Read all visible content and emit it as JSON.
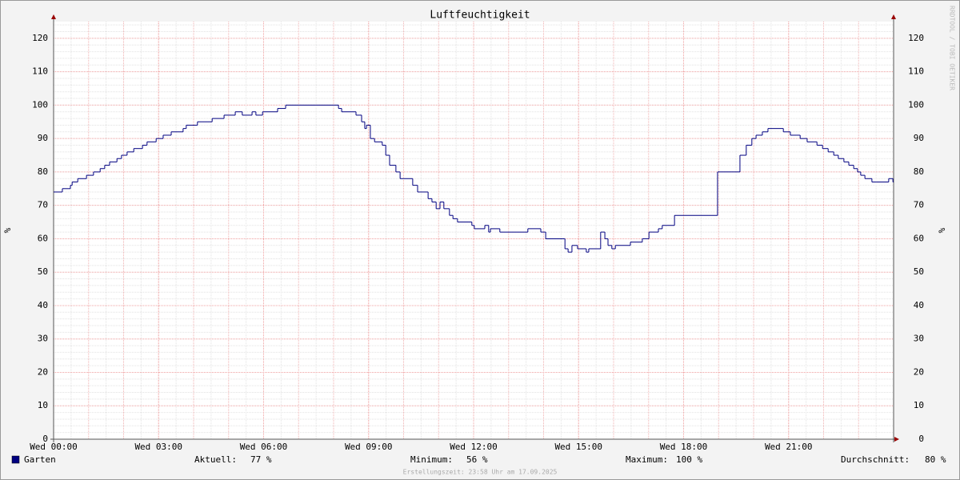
{
  "chart_data": {
    "type": "step-line",
    "title": "Luftfeuchtigkeit",
    "y_label": "%",
    "y2_label": "%",
    "watermark": "RRDTOOL / TOBI OETIKER",
    "footer": "Erstellungszeit: 23:58 Uhr am 17.09.2025",
    "xlim": [
      0,
      24
    ],
    "xticks": [
      {
        "value": 0,
        "label": "Wed 00:00"
      },
      {
        "value": 3,
        "label": "Wed 03:00"
      },
      {
        "value": 6,
        "label": "Wed 06:00"
      },
      {
        "value": 9,
        "label": "Wed 09:00"
      },
      {
        "value": 12,
        "label": "Wed 12:00"
      },
      {
        "value": 15,
        "label": "Wed 15:00"
      },
      {
        "value": 18,
        "label": "Wed 18:00"
      },
      {
        "value": 21,
        "label": "Wed 21:00"
      }
    ],
    "ylim": [
      0,
      125
    ],
    "yticks": [
      0,
      10,
      20,
      30,
      40,
      50,
      60,
      70,
      80,
      90,
      100,
      110,
      120
    ],
    "grid": true,
    "x": [
      0.0,
      0.25,
      0.48,
      0.53,
      0.69,
      0.94,
      1.14,
      1.33,
      1.46,
      1.6,
      1.81,
      1.94,
      2.1,
      2.29,
      2.54,
      2.67,
      2.93,
      3.13,
      3.36,
      3.7,
      3.79,
      4.11,
      4.53,
      4.87,
      5.19,
      5.39,
      5.67,
      5.78,
      5.97,
      6.4,
      6.63,
      8.14,
      8.23,
      8.64,
      8.8,
      8.89,
      8.94,
      9.05,
      9.17,
      9.39,
      9.49,
      9.6,
      9.78,
      9.9,
      10.26,
      10.4,
      10.7,
      10.81,
      10.93,
      11.04,
      11.15,
      11.31,
      11.41,
      11.54,
      11.95,
      12.02,
      12.32,
      12.43,
      12.48,
      12.75,
      13.55,
      13.92,
      14.06,
      14.61,
      14.7,
      14.81,
      14.97,
      15.22,
      15.29,
      15.63,
      15.75,
      15.84,
      15.95,
      16.05,
      16.48,
      16.82,
      17.01,
      17.28,
      17.39,
      17.74,
      18.97,
      19.61,
      19.79,
      19.95,
      20.07,
      20.25,
      20.41,
      20.85,
      21.05,
      21.33,
      21.53,
      21.81,
      21.97,
      22.13,
      22.29,
      22.42,
      22.58,
      22.72,
      22.86,
      22.97,
      23.06,
      23.18,
      23.38,
      23.86,
      23.98
    ],
    "series": [
      {
        "name": "Garten",
        "color": "#000080",
        "values": [
          74,
          75,
          76,
          77,
          78,
          79,
          80,
          81,
          82,
          83,
          84,
          85,
          86,
          87,
          88,
          89,
          90,
          91,
          92,
          93,
          94,
          95,
          96,
          97,
          98,
          97,
          98,
          97,
          98,
          99,
          100,
          99,
          98,
          97,
          95,
          93,
          94,
          90,
          89,
          88,
          85,
          82,
          80,
          78,
          76,
          74,
          72,
          71,
          69,
          71,
          69,
          67,
          66,
          65,
          64,
          63,
          64,
          62,
          63,
          62,
          63,
          62,
          60,
          57,
          56,
          58,
          57,
          56,
          57,
          62,
          60,
          58,
          57,
          58,
          59,
          60,
          62,
          63,
          64,
          67,
          80,
          85,
          88,
          90,
          91,
          92,
          93,
          92,
          91,
          90,
          89,
          88,
          87,
          86,
          85,
          84,
          83,
          82,
          81,
          80,
          79,
          78,
          77,
          78,
          77
        ]
      }
    ],
    "stats": [
      {
        "label": "Aktuell:",
        "value": "77 %"
      },
      {
        "label": "Minimum:",
        "value": "56 %"
      },
      {
        "label": "Maximum:",
        "value": "100 %"
      },
      {
        "label": "Durchschnitt:",
        "value": "80 %"
      }
    ]
  }
}
